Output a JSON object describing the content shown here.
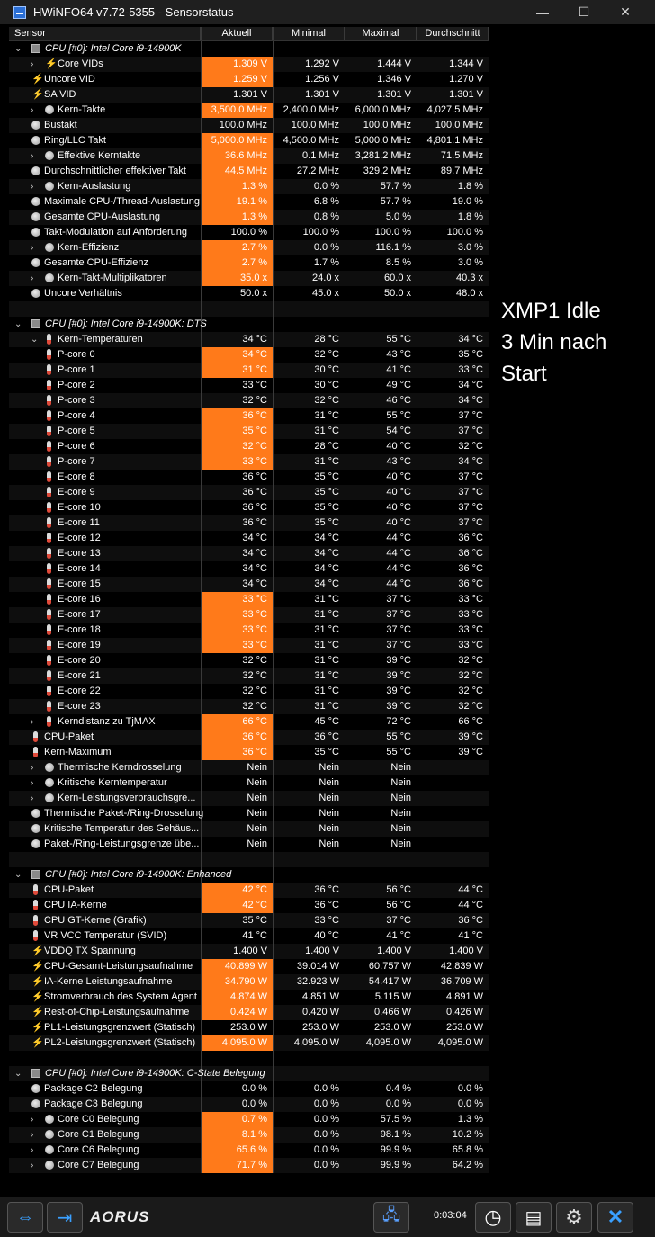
{
  "window": {
    "title": "HWiNFO64 v7.72-5355 - Sensorstatus",
    "minimize": "—",
    "maximize": "☐",
    "close": "✕"
  },
  "columns": {
    "sensor": "Sensor",
    "current": "Aktuell",
    "min": "Minimal",
    "max": "Maximal",
    "avg": "Durchschnitt"
  },
  "rows": [
    {
      "t": "group",
      "label": "CPU [#0]: Intel Core i9-14900K"
    },
    {
      "label": "Core VIDs",
      "icon": "volt",
      "exp": true,
      "cur": "1.309 V",
      "min": "1.292 V",
      "max": "1.444 V",
      "avg": "1.344 V",
      "hl": true
    },
    {
      "label": "Uncore VID",
      "icon": "volt",
      "cur": "1.259 V",
      "min": "1.256 V",
      "max": "1.346 V",
      "avg": "1.270 V",
      "hl": true
    },
    {
      "label": "SA VID",
      "icon": "volt",
      "cur": "1.301 V",
      "min": "1.301 V",
      "max": "1.301 V",
      "avg": "1.301 V"
    },
    {
      "label": "Kern-Takte",
      "icon": "clock",
      "exp": true,
      "cur": "3,500.0 MHz",
      "min": "2,400.0 MHz",
      "max": "6,000.0 MHz",
      "avg": "4,027.5 MHz",
      "hl": true
    },
    {
      "label": "Bustakt",
      "icon": "clock",
      "cur": "100.0 MHz",
      "min": "100.0 MHz",
      "max": "100.0 MHz",
      "avg": "100.0 MHz"
    },
    {
      "label": "Ring/LLC Takt",
      "icon": "clock",
      "cur": "5,000.0 MHz",
      "min": "4,500.0 MHz",
      "max": "5,000.0 MHz",
      "avg": "4,801.1 MHz",
      "hl": true
    },
    {
      "label": "Effektive Kerntakte",
      "icon": "clock",
      "exp": true,
      "cur": "36.6 MHz",
      "min": "0.1 MHz",
      "max": "3,281.2 MHz",
      "avg": "71.5 MHz",
      "hl": true
    },
    {
      "label": "Durchschnittlicher effektiver Takt",
      "icon": "clock",
      "cur": "44.5 MHz",
      "min": "27.2 MHz",
      "max": "329.2 MHz",
      "avg": "89.7 MHz",
      "hl": true
    },
    {
      "label": "Kern-Auslastung",
      "icon": "clock",
      "exp": true,
      "cur": "1.3 %",
      "min": "0.0 %",
      "max": "57.7 %",
      "avg": "1.8 %",
      "hl": true
    },
    {
      "label": "Maximale CPU-/Thread-Auslastung",
      "icon": "clock",
      "cur": "19.1 %",
      "min": "6.8 %",
      "max": "57.7 %",
      "avg": "19.0 %",
      "hl": true
    },
    {
      "label": "Gesamte CPU-Auslastung",
      "icon": "clock",
      "cur": "1.3 %",
      "min": "0.8 %",
      "max": "5.0 %",
      "avg": "1.8 %",
      "hl": true
    },
    {
      "label": "Takt-Modulation auf Anforderung",
      "icon": "clock",
      "cur": "100.0 %",
      "min": "100.0 %",
      "max": "100.0 %",
      "avg": "100.0 %"
    },
    {
      "label": "Kern-Effizienz",
      "icon": "clock",
      "exp": true,
      "cur": "2.7 %",
      "min": "0.0 %",
      "max": "116.1 %",
      "avg": "3.0 %",
      "hl": true
    },
    {
      "label": "Gesamte CPU-Effizienz",
      "icon": "clock",
      "cur": "2.7 %",
      "min": "1.7 %",
      "max": "8.5 %",
      "avg": "3.0 %",
      "hl": true
    },
    {
      "label": "Kern-Takt-Multiplikatoren",
      "icon": "clock",
      "exp": true,
      "cur": "35.0 x",
      "min": "24.0 x",
      "max": "60.0 x",
      "avg": "40.3 x",
      "hl": true
    },
    {
      "label": "Uncore Verhältnis",
      "icon": "clock",
      "cur": "50.0 x",
      "min": "45.0 x",
      "max": "50.0 x",
      "avg": "48.0 x"
    },
    {
      "t": "blank"
    },
    {
      "t": "group",
      "label": "CPU [#0]: Intel Core i9-14900K: DTS"
    },
    {
      "label": "Kern-Temperaturen",
      "icon": "therm",
      "exp": true,
      "open": true,
      "cur": "34 °C",
      "min": "28 °C",
      "max": "55 °C",
      "avg": "34 °C"
    },
    {
      "label": "P-core 0",
      "icon": "therm",
      "sub": true,
      "cur": "34 °C",
      "min": "32 °C",
      "max": "43 °C",
      "avg": "35 °C",
      "hl": true
    },
    {
      "label": "P-core 1",
      "icon": "therm",
      "sub": true,
      "cur": "31 °C",
      "min": "30 °C",
      "max": "41 °C",
      "avg": "33 °C",
      "hl": true
    },
    {
      "label": "P-core 2",
      "icon": "therm",
      "sub": true,
      "cur": "33 °C",
      "min": "30 °C",
      "max": "49 °C",
      "avg": "34 °C"
    },
    {
      "label": "P-core 3",
      "icon": "therm",
      "sub": true,
      "cur": "32 °C",
      "min": "32 °C",
      "max": "46 °C",
      "avg": "34 °C"
    },
    {
      "label": "P-core 4",
      "icon": "therm",
      "sub": true,
      "cur": "36 °C",
      "min": "31 °C",
      "max": "55 °C",
      "avg": "37 °C",
      "hl": true
    },
    {
      "label": "P-core 5",
      "icon": "therm",
      "sub": true,
      "cur": "35 °C",
      "min": "31 °C",
      "max": "54 °C",
      "avg": "37 °C",
      "hl": true
    },
    {
      "label": "P-core 6",
      "icon": "therm",
      "sub": true,
      "cur": "32 °C",
      "min": "28 °C",
      "max": "40 °C",
      "avg": "32 °C",
      "hl": true
    },
    {
      "label": "P-core 7",
      "icon": "therm",
      "sub": true,
      "cur": "33 °C",
      "min": "31 °C",
      "max": "43 °C",
      "avg": "34 °C",
      "hl": true
    },
    {
      "label": "E-core 8",
      "icon": "therm",
      "sub": true,
      "cur": "36 °C",
      "min": "35 °C",
      "max": "40 °C",
      "avg": "37 °C"
    },
    {
      "label": "E-core 9",
      "icon": "therm",
      "sub": true,
      "cur": "36 °C",
      "min": "35 °C",
      "max": "40 °C",
      "avg": "37 °C"
    },
    {
      "label": "E-core 10",
      "icon": "therm",
      "sub": true,
      "cur": "36 °C",
      "min": "35 °C",
      "max": "40 °C",
      "avg": "37 °C"
    },
    {
      "label": "E-core 11",
      "icon": "therm",
      "sub": true,
      "cur": "36 °C",
      "min": "35 °C",
      "max": "40 °C",
      "avg": "37 °C"
    },
    {
      "label": "E-core 12",
      "icon": "therm",
      "sub": true,
      "cur": "34 °C",
      "min": "34 °C",
      "max": "44 °C",
      "avg": "36 °C"
    },
    {
      "label": "E-core 13",
      "icon": "therm",
      "sub": true,
      "cur": "34 °C",
      "min": "34 °C",
      "max": "44 °C",
      "avg": "36 °C"
    },
    {
      "label": "E-core 14",
      "icon": "therm",
      "sub": true,
      "cur": "34 °C",
      "min": "34 °C",
      "max": "44 °C",
      "avg": "36 °C"
    },
    {
      "label": "E-core 15",
      "icon": "therm",
      "sub": true,
      "cur": "34 °C",
      "min": "34 °C",
      "max": "44 °C",
      "avg": "36 °C"
    },
    {
      "label": "E-core 16",
      "icon": "therm",
      "sub": true,
      "cur": "33 °C",
      "min": "31 °C",
      "max": "37 °C",
      "avg": "33 °C",
      "hl": true
    },
    {
      "label": "E-core 17",
      "icon": "therm",
      "sub": true,
      "cur": "33 °C",
      "min": "31 °C",
      "max": "37 °C",
      "avg": "33 °C",
      "hl": true
    },
    {
      "label": "E-core 18",
      "icon": "therm",
      "sub": true,
      "cur": "33 °C",
      "min": "31 °C",
      "max": "37 °C",
      "avg": "33 °C",
      "hl": true
    },
    {
      "label": "E-core 19",
      "icon": "therm",
      "sub": true,
      "cur": "33 °C",
      "min": "31 °C",
      "max": "37 °C",
      "avg": "33 °C",
      "hl": true
    },
    {
      "label": "E-core 20",
      "icon": "therm",
      "sub": true,
      "cur": "32 °C",
      "min": "31 °C",
      "max": "39 °C",
      "avg": "32 °C"
    },
    {
      "label": "E-core 21",
      "icon": "therm",
      "sub": true,
      "cur": "32 °C",
      "min": "31 °C",
      "max": "39 °C",
      "avg": "32 °C"
    },
    {
      "label": "E-core 22",
      "icon": "therm",
      "sub": true,
      "cur": "32 °C",
      "min": "31 °C",
      "max": "39 °C",
      "avg": "32 °C"
    },
    {
      "label": "E-core 23",
      "icon": "therm",
      "sub": true,
      "cur": "32 °C",
      "min": "31 °C",
      "max": "39 °C",
      "avg": "32 °C"
    },
    {
      "label": "Kerndistanz zu TjMAX",
      "icon": "therm",
      "exp": true,
      "cur": "66 °C",
      "min": "45 °C",
      "max": "72 °C",
      "avg": "66 °C",
      "hl": true
    },
    {
      "label": "CPU-Paket",
      "icon": "therm",
      "cur": "36 °C",
      "min": "36 °C",
      "max": "55 °C",
      "avg": "39 °C",
      "hl": true
    },
    {
      "label": "Kern-Maximum",
      "icon": "therm",
      "cur": "36 °C",
      "min": "35 °C",
      "max": "55 °C",
      "avg": "39 °C",
      "hl": true
    },
    {
      "label": "Thermische Kerndrosselung",
      "icon": "clock",
      "exp": true,
      "cur": "Nein",
      "min": "Nein",
      "max": "Nein",
      "avg": ""
    },
    {
      "label": "Kritische Kerntemperatur",
      "icon": "clock",
      "exp": true,
      "cur": "Nein",
      "min": "Nein",
      "max": "Nein",
      "avg": ""
    },
    {
      "label": "Kern-Leistungsverbrauchsgre...",
      "icon": "clock",
      "exp": true,
      "cur": "Nein",
      "min": "Nein",
      "max": "Nein",
      "avg": ""
    },
    {
      "label": "Thermische Paket-/Ring-Drosselung",
      "icon": "clock",
      "cur": "Nein",
      "min": "Nein",
      "max": "Nein",
      "avg": ""
    },
    {
      "label": "Kritische Temperatur des Gehäus...",
      "icon": "clock",
      "cur": "Nein",
      "min": "Nein",
      "max": "Nein",
      "avg": ""
    },
    {
      "label": "Paket-/Ring-Leistungsgrenze übe...",
      "icon": "clock",
      "cur": "Nein",
      "min": "Nein",
      "max": "Nein",
      "avg": ""
    },
    {
      "t": "blank"
    },
    {
      "t": "group",
      "label": "CPU [#0]: Intel Core i9-14900K: Enhanced"
    },
    {
      "label": "CPU-Paket",
      "icon": "therm",
      "cur": "42 °C",
      "min": "36 °C",
      "max": "56 °C",
      "avg": "44 °C",
      "hl": true
    },
    {
      "label": "CPU IA-Kerne",
      "icon": "therm",
      "cur": "42 °C",
      "min": "36 °C",
      "max": "56 °C",
      "avg": "44 °C",
      "hl": true
    },
    {
      "label": "CPU GT-Kerne (Grafik)",
      "icon": "therm",
      "cur": "35 °C",
      "min": "33 °C",
      "max": "37 °C",
      "avg": "36 °C"
    },
    {
      "label": "VR VCC Temperatur (SVID)",
      "icon": "therm",
      "cur": "41 °C",
      "min": "40 °C",
      "max": "41 °C",
      "avg": "41 °C"
    },
    {
      "label": "VDDQ TX Spannung",
      "icon": "volt",
      "cur": "1.400 V",
      "min": "1.400 V",
      "max": "1.400 V",
      "avg": "1.400 V"
    },
    {
      "label": "CPU-Gesamt-Leistungsaufnahme",
      "icon": "volt",
      "cur": "40.899 W",
      "min": "39.014 W",
      "max": "60.757 W",
      "avg": "42.839 W",
      "hl": true
    },
    {
      "label": "IA-Kerne Leistungsaufnahme",
      "icon": "volt",
      "cur": "34.790 W",
      "min": "32.923 W",
      "max": "54.417 W",
      "avg": "36.709 W",
      "hl": true
    },
    {
      "label": "Stromverbrauch des System Agent",
      "icon": "volt",
      "cur": "4.874 W",
      "min": "4.851 W",
      "max": "5.115 W",
      "avg": "4.891 W",
      "hl": true
    },
    {
      "label": "Rest-of-Chip-Leistungsaufnahme",
      "icon": "volt",
      "cur": "0.424 W",
      "min": "0.420 W",
      "max": "0.466 W",
      "avg": "0.426 W",
      "hl": true
    },
    {
      "label": "PL1-Leistungsgrenzwert (Statisch)",
      "icon": "volt",
      "cur": "253.0 W",
      "min": "253.0 W",
      "max": "253.0 W",
      "avg": "253.0 W"
    },
    {
      "label": "PL2-Leistungsgrenzwert (Statisch)",
      "icon": "volt",
      "cur": "4,095.0 W",
      "min": "4,095.0 W",
      "max": "4,095.0 W",
      "avg": "4,095.0 W",
      "hl": true
    },
    {
      "t": "blank"
    },
    {
      "t": "group",
      "label": "CPU [#0]: Intel Core i9-14900K: C-State Belegung"
    },
    {
      "label": "Package C2 Belegung",
      "icon": "clock",
      "cur": "0.0 %",
      "min": "0.0 %",
      "max": "0.4 %",
      "avg": "0.0 %"
    },
    {
      "label": "Package C3 Belegung",
      "icon": "clock",
      "cur": "0.0 %",
      "min": "0.0 %",
      "max": "0.0 %",
      "avg": "0.0 %"
    },
    {
      "label": "Core C0 Belegung",
      "icon": "clock",
      "exp": true,
      "cur": "0.7 %",
      "min": "0.0 %",
      "max": "57.5 %",
      "avg": "1.3 %",
      "hl": true
    },
    {
      "label": "Core C1 Belegung",
      "icon": "clock",
      "exp": true,
      "cur": "8.1 %",
      "min": "0.0 %",
      "max": "98.1 %",
      "avg": "10.2 %",
      "hl": true
    },
    {
      "label": "Core C6 Belegung",
      "icon": "clock",
      "exp": true,
      "cur": "65.6 %",
      "min": "0.0 %",
      "max": "99.9 %",
      "avg": "65.8 %",
      "hl": true
    },
    {
      "label": "Core C7 Belegung",
      "icon": "clock",
      "exp": true,
      "cur": "71.7 %",
      "min": "0.0 %",
      "max": "99.9 %",
      "avg": "64.2 %",
      "hl": true
    }
  ],
  "side_note": [
    "XMP1 Idle",
    "3 Min nach",
    "Start"
  ],
  "statusbar": {
    "brand": "AORUS",
    "timer": "0:03:04"
  },
  "colors": {
    "highlight": "#ff7a1a",
    "accent": "#3aa0ff"
  }
}
